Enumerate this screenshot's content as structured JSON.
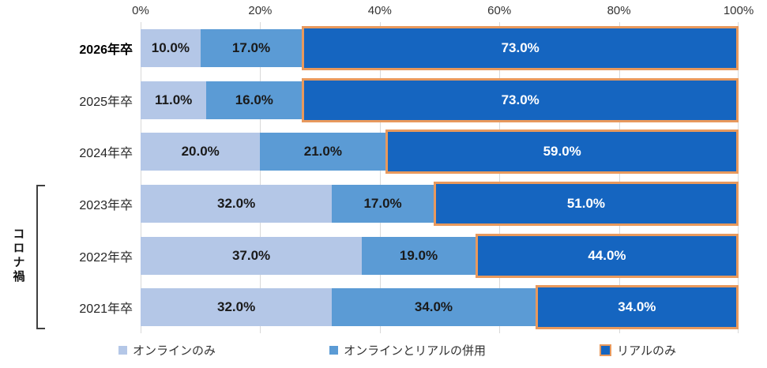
{
  "chart_data": {
    "type": "bar",
    "orientation": "horizontal",
    "stacked": true,
    "title": "",
    "x_ticks": [
      "0%",
      "20%",
      "40%",
      "60%",
      "80%",
      "100%"
    ],
    "xlim": [
      0,
      100
    ],
    "grid": true,
    "legend_position": "bottom",
    "categories": [
      "2026年卒",
      "2025年卒",
      "2024年卒",
      "2023年卒",
      "2022年卒",
      "2021年卒"
    ],
    "bold_category_index": 0,
    "series": [
      {
        "name": "オンラインのみ",
        "color": "#b4c7e7",
        "label_color": "#1a1a1a",
        "values": [
          10.0,
          11.0,
          20.0,
          32.0,
          37.0,
          32.0
        ]
      },
      {
        "name": "オンラインとリアルの併用",
        "color": "#5b9bd5",
        "label_color": "#1a1a1a",
        "values": [
          17.0,
          16.0,
          21.0,
          17.0,
          19.0,
          34.0
        ]
      },
      {
        "name": "リアルのみ",
        "color": "#1565c0",
        "border_color": "#e8995d",
        "label_color": "#ffffff",
        "values": [
          73.0,
          73.0,
          59.0,
          51.0,
          44.0,
          34.0
        ]
      }
    ],
    "value_labels": [
      [
        "10.0%",
        "17.0%",
        "73.0%"
      ],
      [
        "11.0%",
        "16.0%",
        "73.0%"
      ],
      [
        "20.0%",
        "21.0%",
        "59.0%"
      ],
      [
        "32.0%",
        "17.0%",
        "51.0%"
      ],
      [
        "37.0%",
        "19.0%",
        "44.0%"
      ],
      [
        "32.0%",
        "34.0%",
        "34.0%"
      ]
    ],
    "bracket": {
      "label": "コロナ禍",
      "covers": [
        "2023年卒",
        "2022年卒",
        "2021年卒"
      ]
    }
  }
}
